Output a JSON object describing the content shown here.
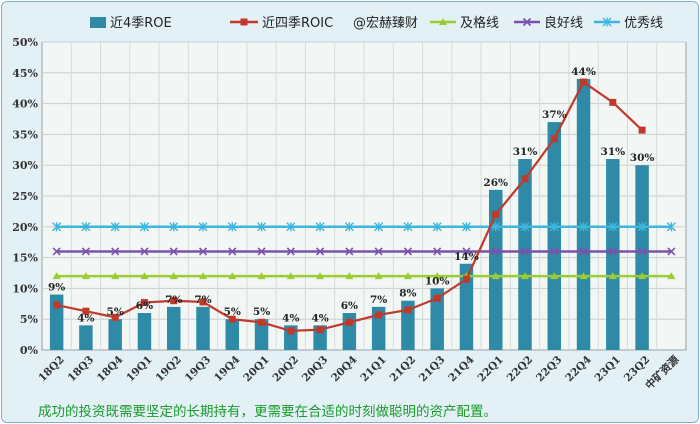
{
  "chart_data": {
    "type": "bar",
    "categories": [
      "18Q2",
      "18Q3",
      "18Q4",
      "19Q1",
      "19Q2",
      "19Q3",
      "19Q4",
      "20Q1",
      "20Q2",
      "20Q3",
      "20Q4",
      "21Q1",
      "21Q2",
      "21Q3",
      "21Q4",
      "22Q1",
      "22Q2",
      "22Q3",
      "22Q4",
      "23Q1",
      "23Q2",
      "中矿资源"
    ],
    "ylim": [
      0,
      50
    ],
    "yticks": [
      "0%",
      "5%",
      "10%",
      "15%",
      "20%",
      "25%",
      "30%",
      "35%",
      "40%",
      "45%",
      "50%"
    ],
    "grid": true,
    "legend_position": "top",
    "legend": {
      "roe": "近4季ROE",
      "roic": "近四季ROIC",
      "watermark": "@宏赫臻财",
      "pass": "及格线",
      "good": "良好线",
      "excellent": "优秀线"
    },
    "series": [
      {
        "name": "近4季ROE",
        "kind": "bar",
        "color": "#2e8aa6",
        "values": [
          9,
          4,
          5,
          6,
          7,
          7,
          5,
          5,
          4,
          4,
          6,
          7,
          8,
          10,
          14,
          26,
          31,
          37,
          44,
          31,
          30,
          null
        ],
        "labels": [
          "9%",
          "4%",
          "5%",
          "6%",
          "7%",
          "7%",
          "5%",
          "5%",
          "4%",
          "4%",
          "6%",
          "7%",
          "8%",
          "10%",
          "14%",
          "26%",
          "31%",
          "37%",
          "44%",
          "31%",
          "30%",
          ""
        ]
      },
      {
        "name": "近四季ROIC",
        "kind": "line",
        "color": "#c0392b",
        "values": [
          7.3,
          6.3,
          5.3,
          7.7,
          8.0,
          7.8,
          5.0,
          4.5,
          3.1,
          3.3,
          4.5,
          5.7,
          6.5,
          8.4,
          11.5,
          22.0,
          27.8,
          34.3,
          43.5,
          40.2,
          35.7,
          null
        ]
      },
      {
        "name": "及格线",
        "kind": "line",
        "color": "#9acd32",
        "values": [
          12,
          12,
          12,
          12,
          12,
          12,
          12,
          12,
          12,
          12,
          12,
          12,
          12,
          12,
          12,
          12,
          12,
          12,
          12,
          12,
          12,
          12
        ]
      },
      {
        "name": "良好线",
        "kind": "line",
        "color": "#7b52ab",
        "values": [
          16,
          16,
          16,
          16,
          16,
          16,
          16,
          16,
          16,
          16,
          16,
          16,
          16,
          16,
          16,
          16,
          16,
          16,
          16,
          16,
          16,
          16
        ]
      },
      {
        "name": "优秀线",
        "kind": "line",
        "color": "#3fb6dc",
        "values": [
          20,
          20,
          20,
          20,
          20,
          20,
          20,
          20,
          20,
          20,
          20,
          20,
          20,
          20,
          20,
          20,
          20,
          20,
          20,
          20,
          20,
          20
        ]
      }
    ]
  },
  "footer_note": "成功的投资既需要坚定的长期持有，更需要在合适的时刻做聪明的资产配置。"
}
